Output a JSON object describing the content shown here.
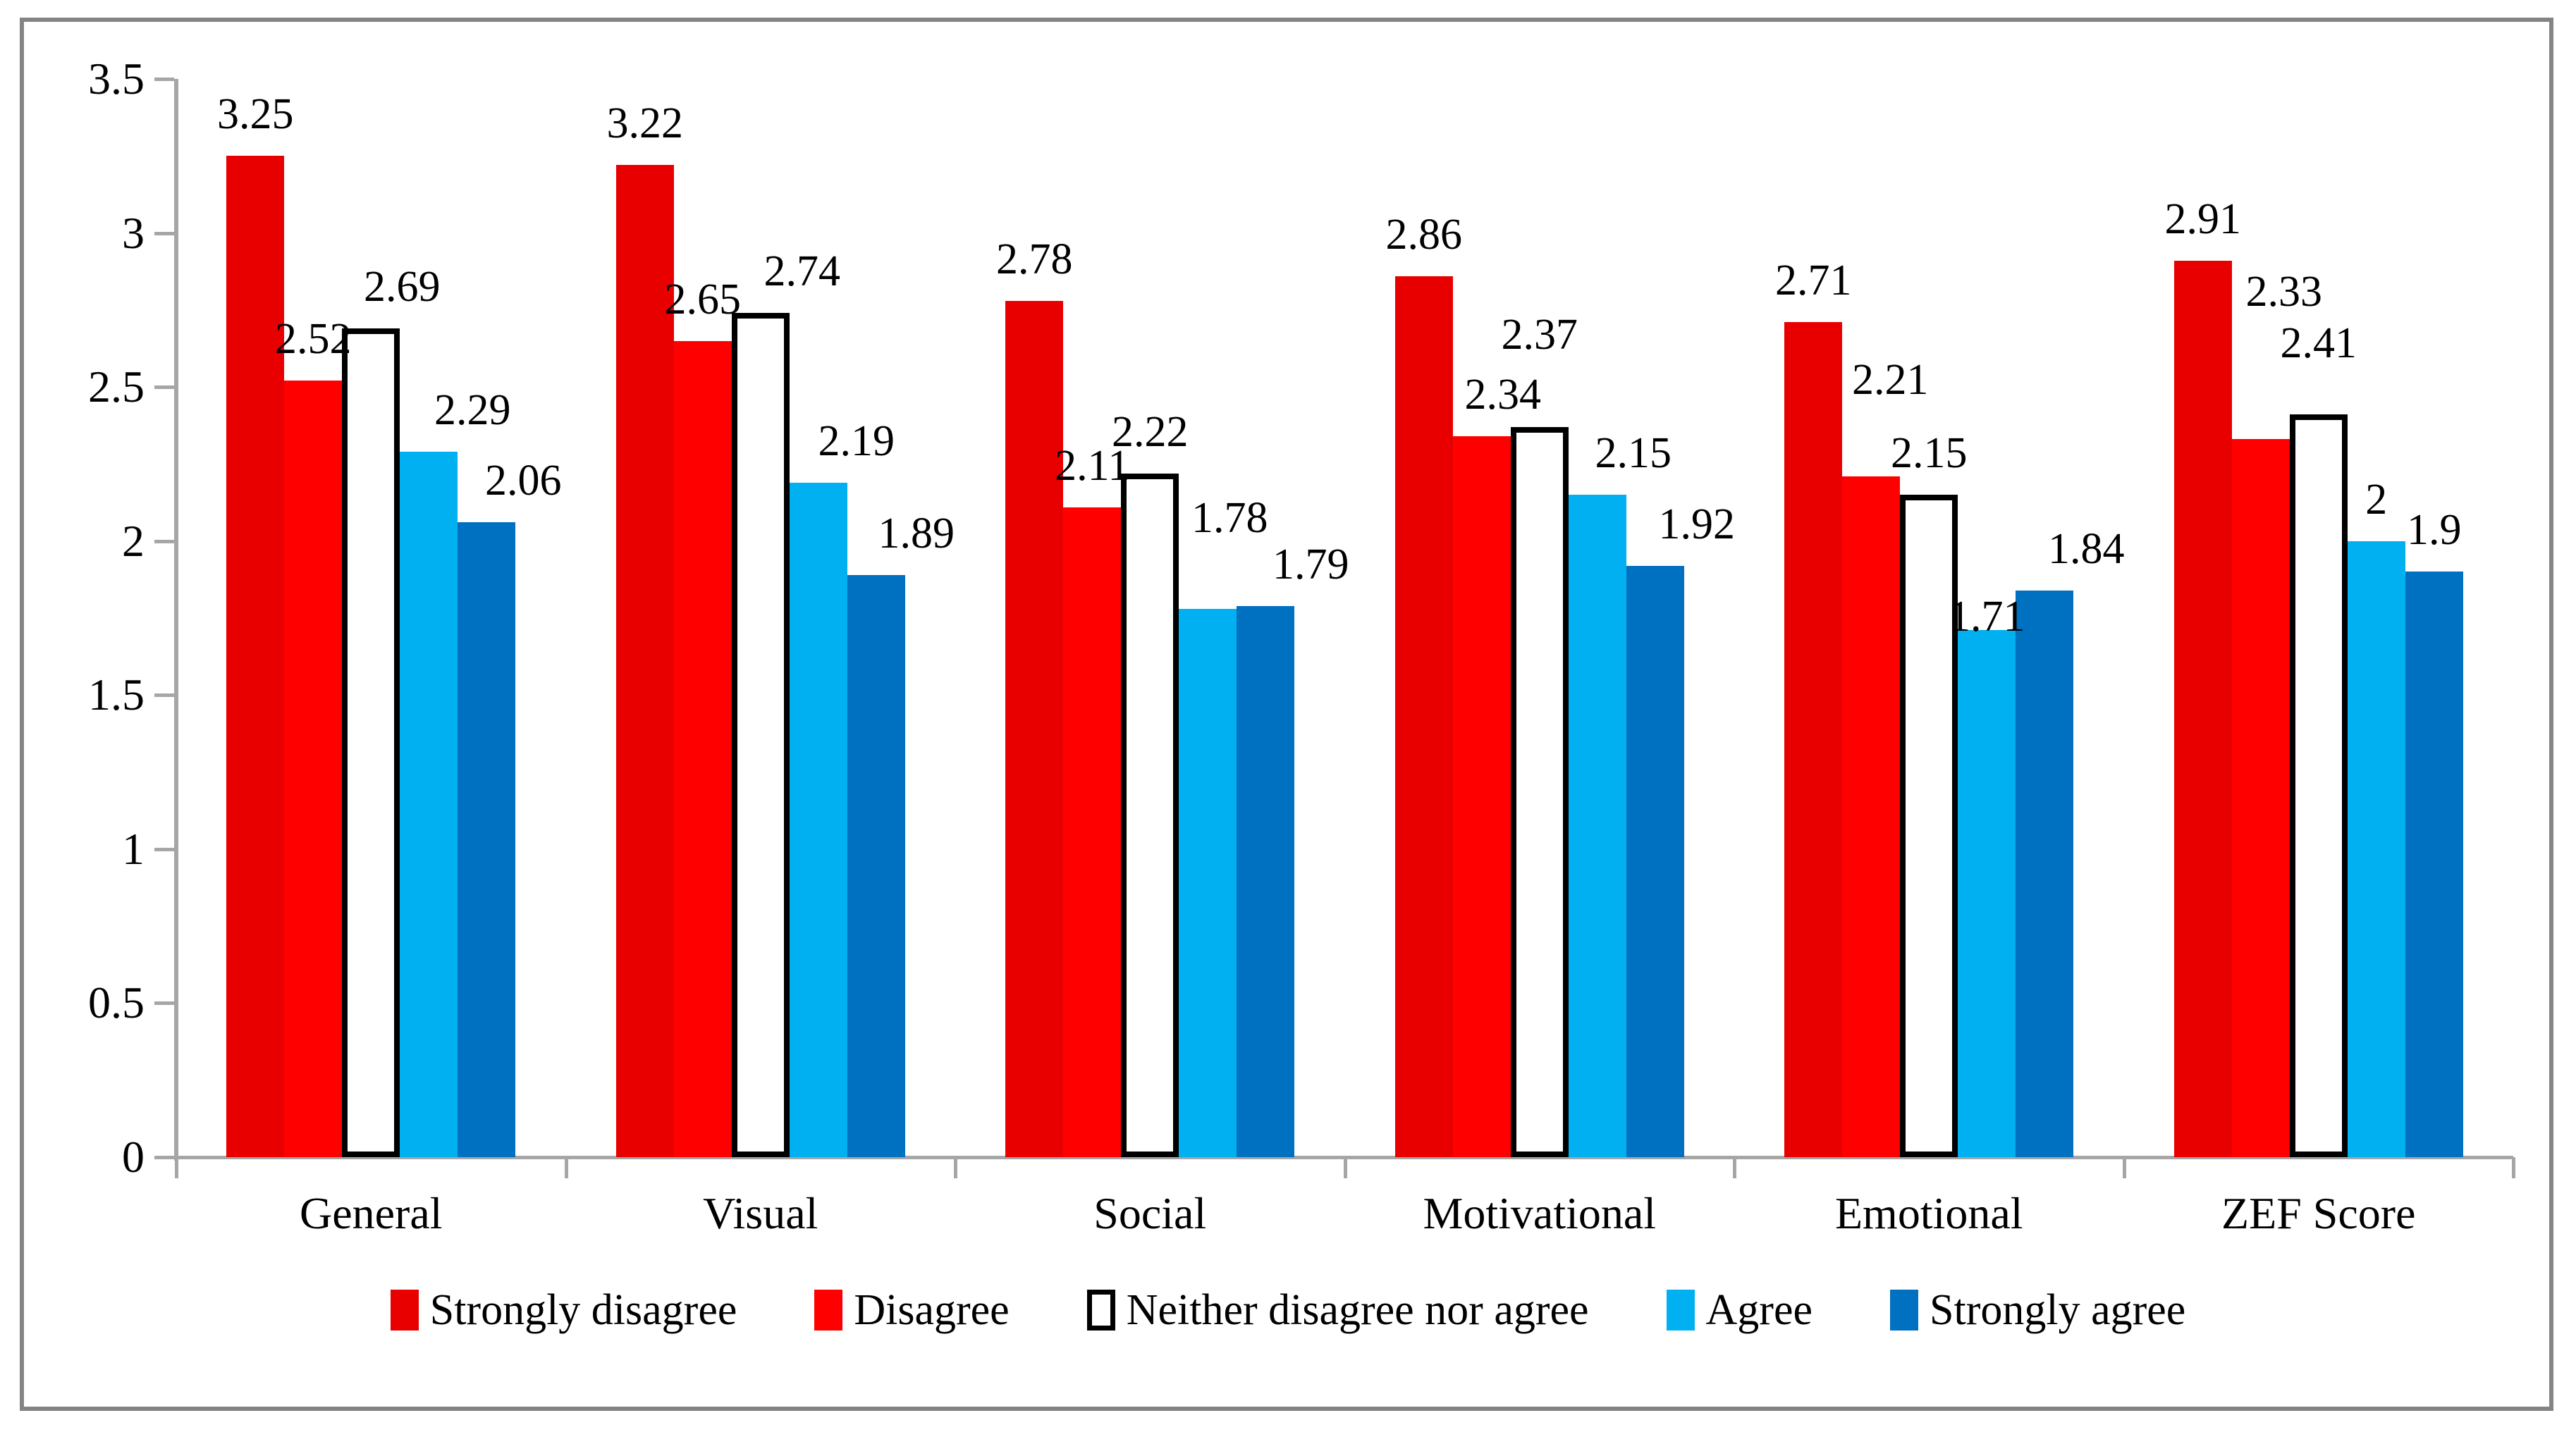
{
  "figure": {
    "background": "#ffffff",
    "border_color": "#848484",
    "axis_color": "#a6a6a6",
    "text_color": "#000000"
  },
  "chart_data": {
    "type": "bar",
    "title": "",
    "xlabel": "",
    "ylabel": "",
    "ylim": [
      0,
      3.5
    ],
    "grid": false,
    "legend_position": "bottom",
    "categories": [
      "General",
      "Visual",
      "Social",
      "Motivational",
      "Emotional",
      "ZEF Score"
    ],
    "yticks": [
      {
        "value": 3.5,
        "label": "3.5"
      },
      {
        "value": 3,
        "label": "3"
      },
      {
        "value": 2.5,
        "label": "2.5"
      },
      {
        "value": 2,
        "label": "2"
      },
      {
        "value": 1.5,
        "label": "1.5"
      },
      {
        "value": 1,
        "label": "1"
      },
      {
        "value": 0.5,
        "label": "0.5"
      },
      {
        "value": 0,
        "label": "0"
      }
    ],
    "series": [
      {
        "name": "Strongly disagree",
        "color": "#e80000",
        "values": [
          3.25,
          3.22,
          2.78,
          2.86,
          2.71,
          2.91
        ],
        "labels": [
          "3.25",
          "3.22",
          "2.78",
          "2.86",
          "2.71",
          "2.91"
        ]
      },
      {
        "name": "Disagree",
        "color": "#ff0000",
        "values": [
          2.52,
          2.65,
          2.11,
          2.34,
          2.21,
          2.33
        ],
        "labels": [
          "2.52",
          "2.65",
          "2.11",
          "2.34",
          "2.21",
          "2.33"
        ]
      },
      {
        "name": "Neither disagree nor agree",
        "color": "#ffffff",
        "border_color": "#000000",
        "values": [
          2.69,
          2.74,
          2.22,
          2.37,
          2.15,
          2.41
        ],
        "labels": [
          "2.69",
          "2.74",
          "2.22",
          "2.37",
          "2.15",
          "2.41"
        ]
      },
      {
        "name": "Agree",
        "color": "#00b0f0",
        "values": [
          2.29,
          2.19,
          1.78,
          2.15,
          1.71,
          2
        ],
        "labels": [
          "2.29",
          "2.19",
          "1.78",
          "2.15",
          "1.71",
          "2"
        ]
      },
      {
        "name": "Strongly agree",
        "color": "#0070c0",
        "values": [
          2.06,
          1.89,
          1.79,
          1.92,
          1.84,
          1.9
        ],
        "labels": [
          "2.06",
          "1.89",
          "1.79",
          "1.92",
          "1.84",
          "1.9"
        ]
      }
    ]
  },
  "legend": {
    "items": [
      {
        "label": "Strongly disagree",
        "color": "#e80000"
      },
      {
        "label": "Disagree",
        "color": "#ff0000"
      },
      {
        "label": "Neither disagree nor agree",
        "color": "#ffffff",
        "border_color": "#000000"
      },
      {
        "label": "Agree",
        "color": "#00b0f0"
      },
      {
        "label": "Strongly agree",
        "color": "#0070c0"
      }
    ]
  }
}
